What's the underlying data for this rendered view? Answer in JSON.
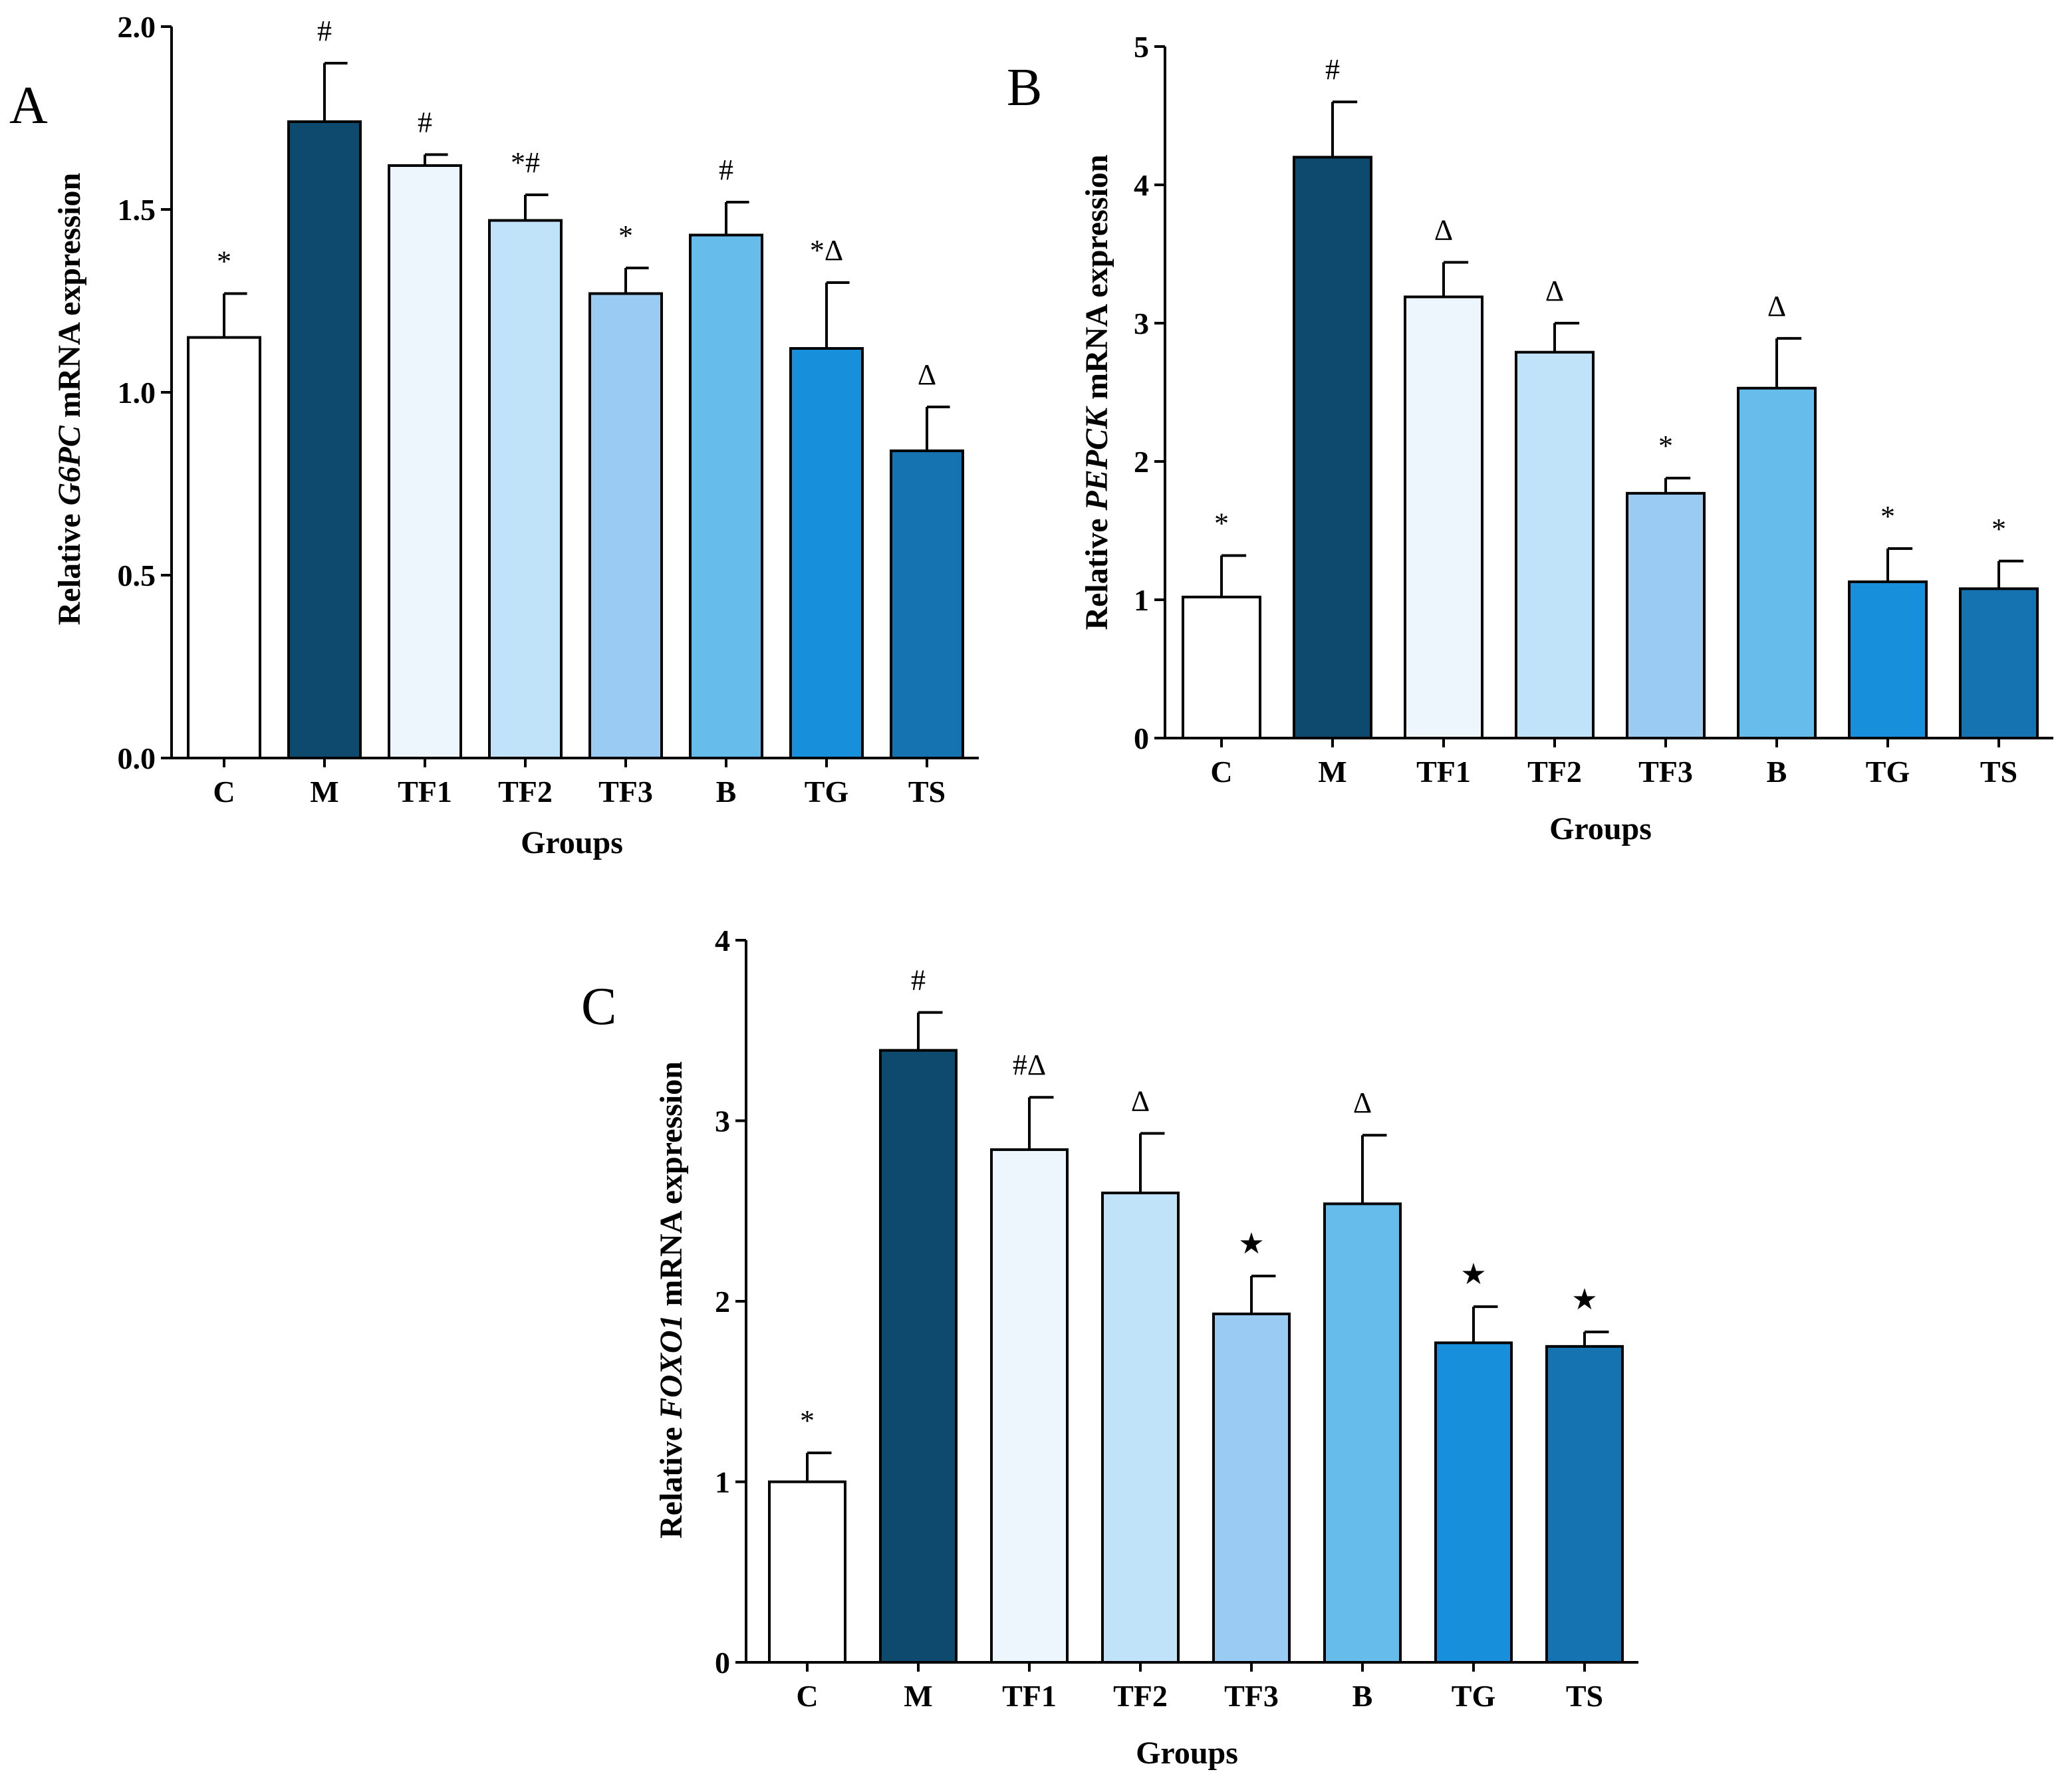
{
  "palette": [
    "#ffffff",
    "#0d4a6e",
    "#eef6fd",
    "#c0e3f9",
    "#99cbf3",
    "#66bdeb",
    "#188fda",
    "#1473b0"
  ],
  "chart_data": [
    {
      "type": "bar",
      "panel": "A",
      "categories": [
        "C",
        "M",
        "TF1",
        "TF2",
        "TF3",
        "B",
        "TG",
        "TS"
      ],
      "values": [
        1.15,
        1.74,
        1.62,
        1.47,
        1.27,
        1.43,
        1.12,
        0.84
      ],
      "errors": [
        0.12,
        0.16,
        0.03,
        0.07,
        0.07,
        0.09,
        0.18,
        0.12
      ],
      "annotations": [
        "*",
        "#",
        "#",
        "*#",
        "*",
        "#",
        "*Δ",
        "Δ"
      ],
      "ylabel_prefix": "Relative ",
      "ylabel_gene": "G6PC",
      "ylabel_suffix": " mRNA expression",
      "xlabel": "Groups",
      "ylim": [
        0,
        2.0
      ],
      "yticks": [
        "0.0",
        "0.5",
        "1.0",
        "1.5",
        "2.0"
      ]
    },
    {
      "type": "bar",
      "panel": "B",
      "categories": [
        "C",
        "M",
        "TF1",
        "TF2",
        "TF3",
        "B",
        "TG",
        "TS"
      ],
      "values": [
        1.02,
        4.2,
        3.19,
        2.79,
        1.77,
        2.53,
        1.13,
        1.08
      ],
      "errors": [
        0.3,
        0.4,
        0.25,
        0.21,
        0.11,
        0.36,
        0.24,
        0.2
      ],
      "annotations": [
        "*",
        "#",
        "Δ",
        "Δ",
        "*",
        "Δ",
        "*",
        "*"
      ],
      "ylabel_prefix": "Relative ",
      "ylabel_gene": "PEPCK",
      "ylabel_suffix": " mRNA expression",
      "xlabel": "Groups",
      "ylim": [
        0,
        5
      ],
      "yticks": [
        "0",
        "1",
        "2",
        "3",
        "4",
        "5"
      ]
    },
    {
      "type": "bar",
      "panel": "C",
      "categories": [
        "C",
        "M",
        "TF1",
        "TF2",
        "TF3",
        "B",
        "TG",
        "TS"
      ],
      "values": [
        1.0,
        3.39,
        2.84,
        2.6,
        1.93,
        2.54,
        1.77,
        1.75
      ],
      "errors": [
        0.16,
        0.21,
        0.29,
        0.33,
        0.21,
        0.38,
        0.2,
        0.08
      ],
      "annotations": [
        "*",
        "#",
        "#Δ",
        "Δ",
        "★",
        "Δ",
        "★",
        "★"
      ],
      "ylabel_prefix": "Relative ",
      "ylabel_gene": "FOXO1",
      "ylabel_suffix": " mRNA expression",
      "xlabel": "Groups",
      "ylim": [
        0,
        4
      ],
      "yticks": [
        "0",
        "1",
        "2",
        "3",
        "4"
      ]
    }
  ]
}
